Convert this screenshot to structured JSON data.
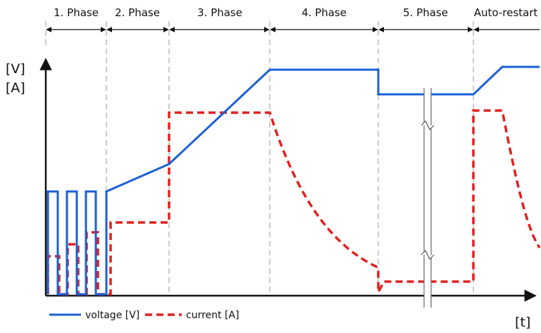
{
  "phases": [
    {
      "label": "1. Phase"
    },
    {
      "label": "2. Phase"
    },
    {
      "label": "3. Phase"
    },
    {
      "label": "4. Phase"
    },
    {
      "label": "5. Phase"
    },
    {
      "label": "Auto-restart"
    }
  ],
  "axes": {
    "y_label_voltage": "[V]",
    "y_label_current": "[A]",
    "x_label": "[t]"
  },
  "legend": {
    "voltage": "voltage [V]",
    "current": "current [A]"
  },
  "colors": {
    "voltage": "#1a5fd6",
    "current": "#e02020",
    "axis": "#111111",
    "divider": "#999999",
    "break_mark": "#666666"
  }
}
